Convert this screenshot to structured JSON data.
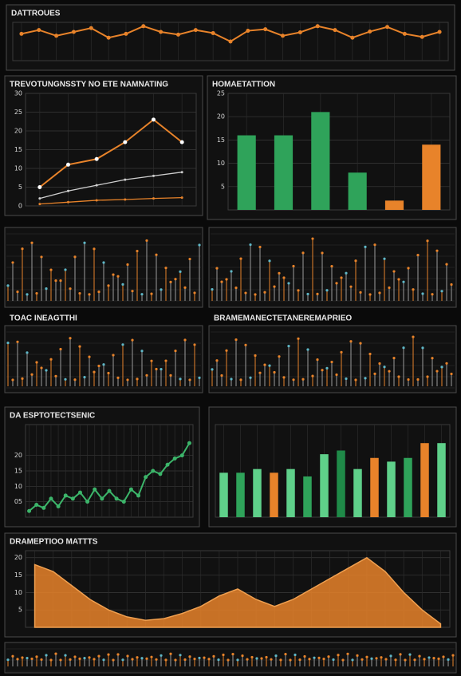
{
  "chart_data": [
    {
      "type": "line",
      "title": "DATTROUES",
      "ylim": [
        0,
        10
      ],
      "series": [
        {
          "color": "#e8832a",
          "values": [
            7,
            8,
            6.5,
            7.5,
            8.5,
            6,
            7,
            9,
            7.5,
            6.8,
            8,
            7.2,
            5,
            7.8,
            8.2,
            6.5,
            7.4,
            9,
            8,
            6,
            7.6,
            8.8,
            7,
            6.2,
            7.5
          ]
        }
      ]
    },
    {
      "type": "line",
      "title": "TREVOTUNGNSSTY NO ETE NAMNATING",
      "ylim": [
        0,
        30
      ],
      "yticks": [
        0,
        5,
        10,
        15,
        20,
        25,
        30
      ],
      "grid": true,
      "series": [
        {
          "color": "#e8832a",
          "values": [
            5,
            11,
            12.5,
            17,
            23,
            17
          ]
        },
        {
          "color": "#cfcfcf",
          "values": [
            2,
            4,
            5.5,
            7,
            8,
            9
          ]
        },
        {
          "color": "#e8832a",
          "values": [
            0.5,
            1,
            1.5,
            1.7,
            2,
            2.2
          ]
        }
      ]
    },
    {
      "type": "bar",
      "title": "HOMAETATTION",
      "ylim": [
        0,
        25
      ],
      "yticks": [
        5,
        10,
        15,
        20,
        25
      ],
      "grid": true,
      "values": [
        16,
        16,
        21,
        8,
        2,
        14
      ],
      "colors": [
        "#2fa35a",
        "#2fa35a",
        "#2fa35a",
        "#2fa35a",
        "#e8832a",
        "#e8832a"
      ]
    },
    {
      "type": "line",
      "title": "DA ESPTOTECTSENIC",
      "ylim": [
        0,
        30
      ],
      "yticks": [
        {
          "value": 5,
          "label": "05"
        },
        10,
        15,
        20
      ],
      "grid": true,
      "series": [
        {
          "color": "#3cb56a",
          "values": [
            2,
            4,
            3,
            6,
            3.5,
            7,
            6,
            8,
            5,
            9,
            6,
            8.5,
            6,
            5,
            9,
            7,
            13,
            15,
            14,
            17,
            19,
            20,
            24
          ]
        }
      ]
    },
    {
      "type": "bar",
      "ylim": [
        0,
        25
      ],
      "grid": true,
      "values": [
        12,
        12,
        13,
        12,
        13,
        11,
        17,
        18,
        13,
        16,
        15,
        16,
        20,
        20
      ],
      "colors": [
        "#5fd08a",
        "#2fa35a",
        "#5fd08a",
        "#e8832a",
        "#5fd08a",
        "#2fa35a",
        "#5fd08a",
        "#1f8a48",
        "#5fd08a",
        "#e8832a",
        "#5fd08a",
        "#2fa35a",
        "#e8832a",
        "#5fd08a"
      ]
    },
    {
      "type": "area",
      "title": "DRAMEPTIOO MATTTS",
      "ylim": [
        0,
        22
      ],
      "yticks": [
        5,
        10,
        15,
        20
      ],
      "grid": true,
      "color": "#e8832a",
      "values": [
        18,
        16,
        12,
        8,
        5,
        3,
        2,
        2.5,
        4,
        6,
        9,
        11,
        8,
        6,
        8,
        11,
        14,
        17,
        20,
        16,
        10,
        5,
        1
      ]
    }
  ],
  "panels": {
    "strip_left_title": "TOAC INEAGTTHI",
    "strip_right_title": "BRAMEMANECTETANEREMAPRIEO"
  }
}
